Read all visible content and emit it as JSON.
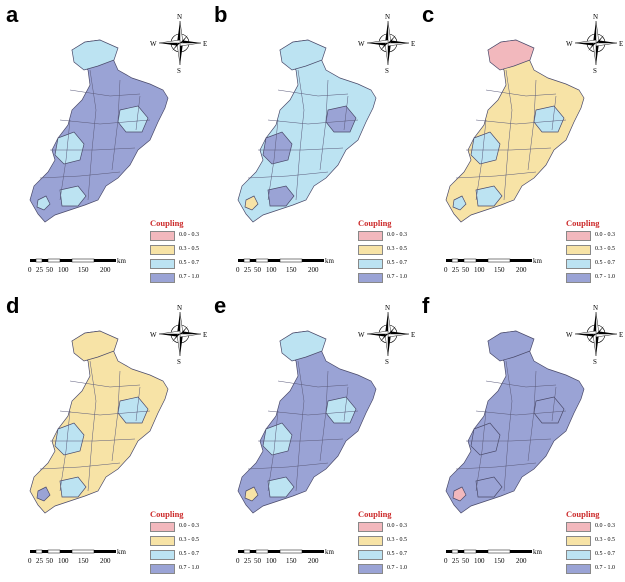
{
  "compass": {
    "n": "N",
    "s": "S",
    "e": "E",
    "w": "W"
  },
  "legend": {
    "title": "Coupling",
    "classes": [
      {
        "range": "0.0 - 0.3",
        "color": "#f2b8bd"
      },
      {
        "range": "0.3 - 0.5",
        "color": "#f7e3a6"
      },
      {
        "range": "0.5 - 0.7",
        "color": "#bce3f2"
      },
      {
        "range": "0.7 - 1.0",
        "color": "#9aa3d5"
      }
    ]
  },
  "scalebar": {
    "ticks": [
      "0",
      "25",
      "50",
      "100",
      "150",
      "200"
    ],
    "unit": "km"
  },
  "panels": [
    {
      "label": "a",
      "base": "#9aa3d5",
      "patch": "#bce3f2",
      "north": "#bce3f2",
      "spot": "#bce3f2"
    },
    {
      "label": "b",
      "base": "#bce3f2",
      "patch": "#9aa3d5",
      "north": "#bce3f2",
      "spot": "#f7e3a6"
    },
    {
      "label": "c",
      "base": "#f7e3a6",
      "patch": "#bce3f2",
      "north": "#f2b8bd",
      "spot": "#bce3f2"
    },
    {
      "label": "d",
      "base": "#f7e3a6",
      "patch": "#bce3f2",
      "north": "#f7e3a6",
      "spot": "#9aa3d5"
    },
    {
      "label": "e",
      "base": "#9aa3d5",
      "patch": "#bce3f2",
      "north": "#bce3f2",
      "spot": "#f7e3a6"
    },
    {
      "label": "f",
      "base": "#9aa3d5",
      "patch": "#9aa3d5",
      "north": "#9aa3d5",
      "spot": "#f2b8bd"
    }
  ]
}
